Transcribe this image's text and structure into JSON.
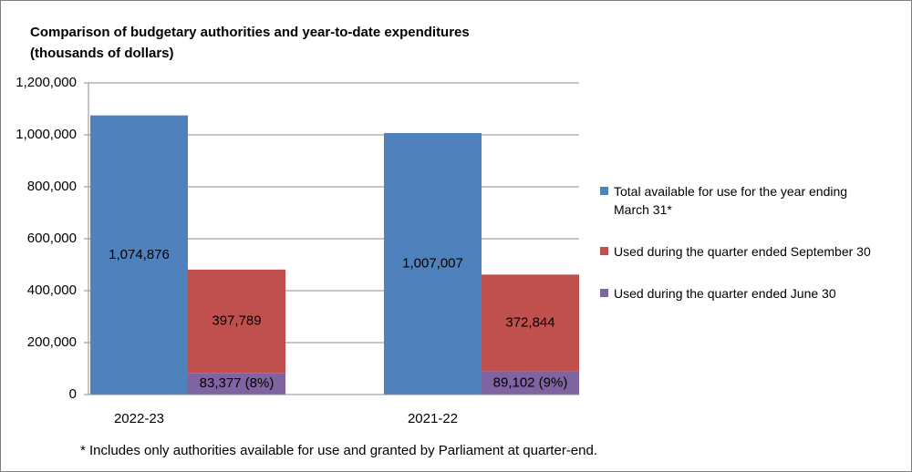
{
  "chart_data": {
    "type": "bar",
    "title": "Comparison of budgetary authorities and year-to-date expenditures",
    "subtitle": "(thousands of dollars)",
    "note": "* Includes only authorities available for use and granted by Parliament at quarter-end.",
    "categories": [
      "2022-23",
      "2021-22"
    ],
    "series": [
      {
        "name": "Total available for use for the year ending March 31*",
        "color": "#4f81bd",
        "stack": "total",
        "values": [
          1074876,
          1007007
        ],
        "value_labels": [
          "1,074,876",
          "1,007,007"
        ]
      },
      {
        "name": "Used during the quarter ended September 30",
        "color": "#c0504d",
        "stack": "used",
        "values": [
          397789,
          372844
        ],
        "value_labels": [
          "397,789",
          "372,844"
        ]
      },
      {
        "name": "Used during the quarter ended June 30",
        "color": "#8064a2",
        "stack": "used",
        "values": [
          83377,
          89102
        ],
        "value_labels": [
          "83,377 (8%)",
          "89,102 (9%)"
        ]
      }
    ],
    "ylim": [
      0,
      1200000
    ],
    "yticks": [
      0,
      {
        "value": 200000,
        "label": "200,000"
      },
      {
        "value": 400000,
        "label": "400,000"
      },
      {
        "value": 600000,
        "label": "600,000"
      },
      {
        "value": 800000,
        "label": "800,000"
      },
      {
        "value": 1000000,
        "label": "1,000,000"
      },
      {
        "value": 1200000,
        "label": "1,200,000"
      }
    ],
    "grid": true,
    "legend": "right"
  }
}
